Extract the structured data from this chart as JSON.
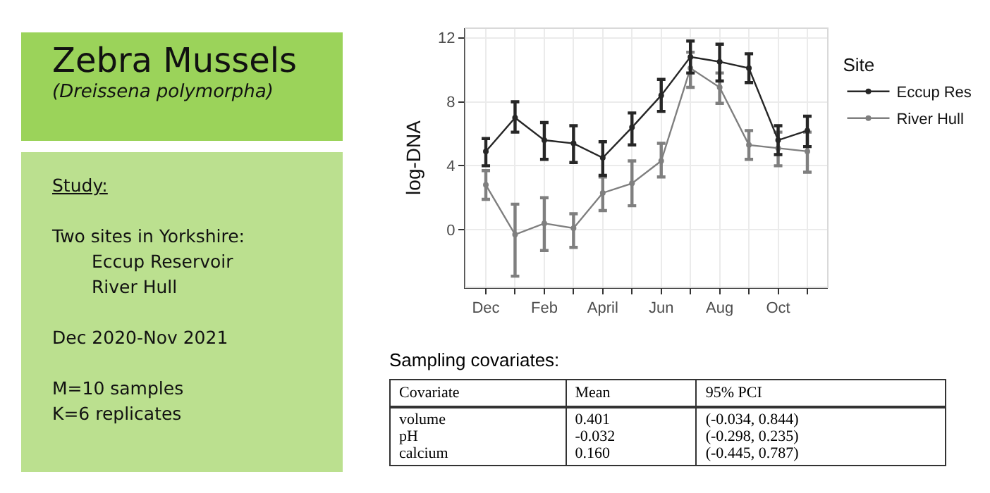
{
  "chart_data": [
    {
      "type": "line",
      "ylabel": "log-DNA",
      "legend_title": "Site",
      "categories": [
        "Dec",
        null,
        "Feb",
        null,
        "April",
        null,
        "Jun",
        null,
        "Aug",
        null,
        "Oct",
        null
      ],
      "series": [
        {
          "name": "Eccup Res",
          "color": "#262626",
          "values": [
            4.9,
            7.0,
            5.6,
            5.4,
            4.5,
            6.4,
            8.4,
            10.8,
            10.5,
            10.1,
            5.6,
            6.2
          ],
          "errors": [
            [
              4.0,
              5.7
            ],
            [
              6.1,
              8.0
            ],
            [
              4.4,
              6.7
            ],
            [
              4.2,
              6.5
            ],
            [
              3.4,
              5.5
            ],
            [
              5.3,
              7.3
            ],
            [
              7.4,
              9.4
            ],
            [
              9.8,
              11.8
            ],
            [
              9.3,
              11.6
            ],
            [
              9.2,
              11.0
            ],
            [
              4.7,
              6.5
            ],
            [
              5.2,
              7.1
            ]
          ]
        },
        {
          "name": "River Hull",
          "color": "#7f7f7f",
          "values": [
            2.8,
            -0.3,
            0.4,
            0.1,
            2.3,
            2.9,
            4.3,
            10.1,
            8.9,
            5.3,
            5.1,
            4.9
          ],
          "errors": [
            [
              1.9,
              3.7
            ],
            [
              -2.9,
              1.6
            ],
            [
              -1.3,
              2.0
            ],
            [
              -1.1,
              1.0
            ],
            [
              1.2,
              3.3
            ],
            [
              1.5,
              4.3
            ],
            [
              3.3,
              5.4
            ],
            [
              8.9,
              11.1
            ],
            [
              7.9,
              9.8
            ],
            [
              4.4,
              6.2
            ],
            [
              4.0,
              6.1
            ],
            [
              3.6,
              6.1
            ]
          ]
        }
      ],
      "ylim": [
        -3.6,
        12.6
      ],
      "yticks": [
        0,
        4,
        8,
        12
      ],
      "grid": true,
      "legend": "right",
      "marker": "circle",
      "line_style": "solid"
    },
    {
      "type": "other",
      "title": "Zebra Mussels",
      "subtitle": "(Dreissena polymorpha)",
      "annotations": [
        "Study:",
        "Two sites in Yorkshire:",
        "Eccup Reservoir",
        "River Hull",
        "Dec 2020-Nov 2021",
        "M=10 samples",
        "K=6 replicates"
      ]
    },
    {
      "type": "other",
      "title": "Sampling covariates:",
      "annotations": [
        "Covariate",
        "Mean",
        "95% PCI",
        "volume",
        "0.401",
        "(-0.034, 0.844)",
        "pH",
        "-0.032",
        "(-0.298, 0.235)",
        "calcium",
        "0.160",
        "(-0.445, 0.787)"
      ]
    }
  ]
}
